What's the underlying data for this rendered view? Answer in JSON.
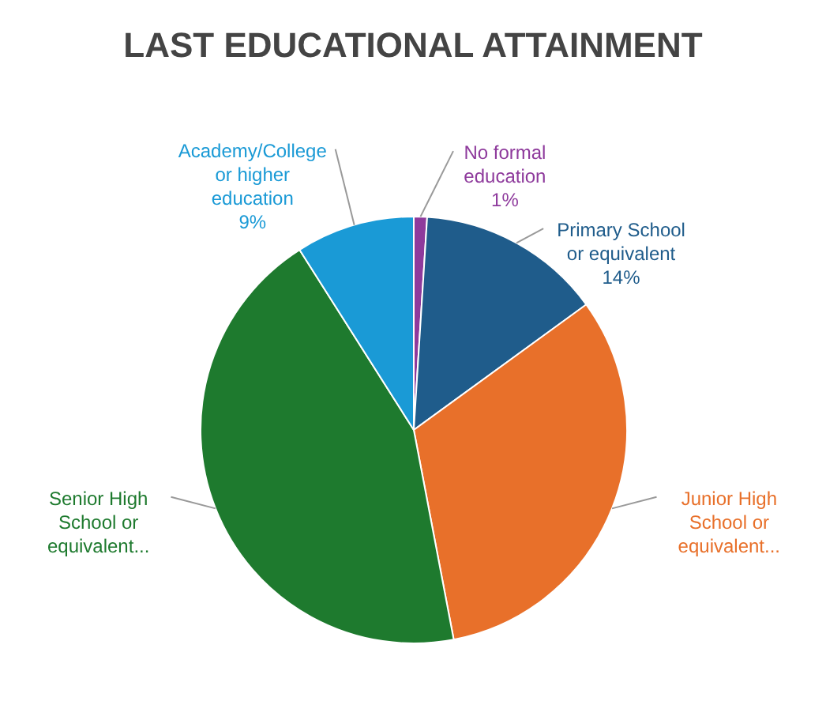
{
  "chart_data": {
    "type": "pie",
    "title": "LAST EDUCATIONAL ATTAINMENT",
    "categories": [
      "No formal education",
      "Primary School or equivalent",
      "Junior High School or equivalent...",
      "Senior High School or equivalent...",
      "Academy/College or higher education"
    ],
    "values": [
      1,
      14,
      32,
      44,
      9
    ],
    "value_labels": [
      "1%",
      "14%",
      null,
      null,
      "9%"
    ],
    "colors": [
      "#8e3a9c",
      "#1f5c8b",
      "#e8702a",
      "#1e7a2e",
      "#1a9ad6"
    ]
  }
}
